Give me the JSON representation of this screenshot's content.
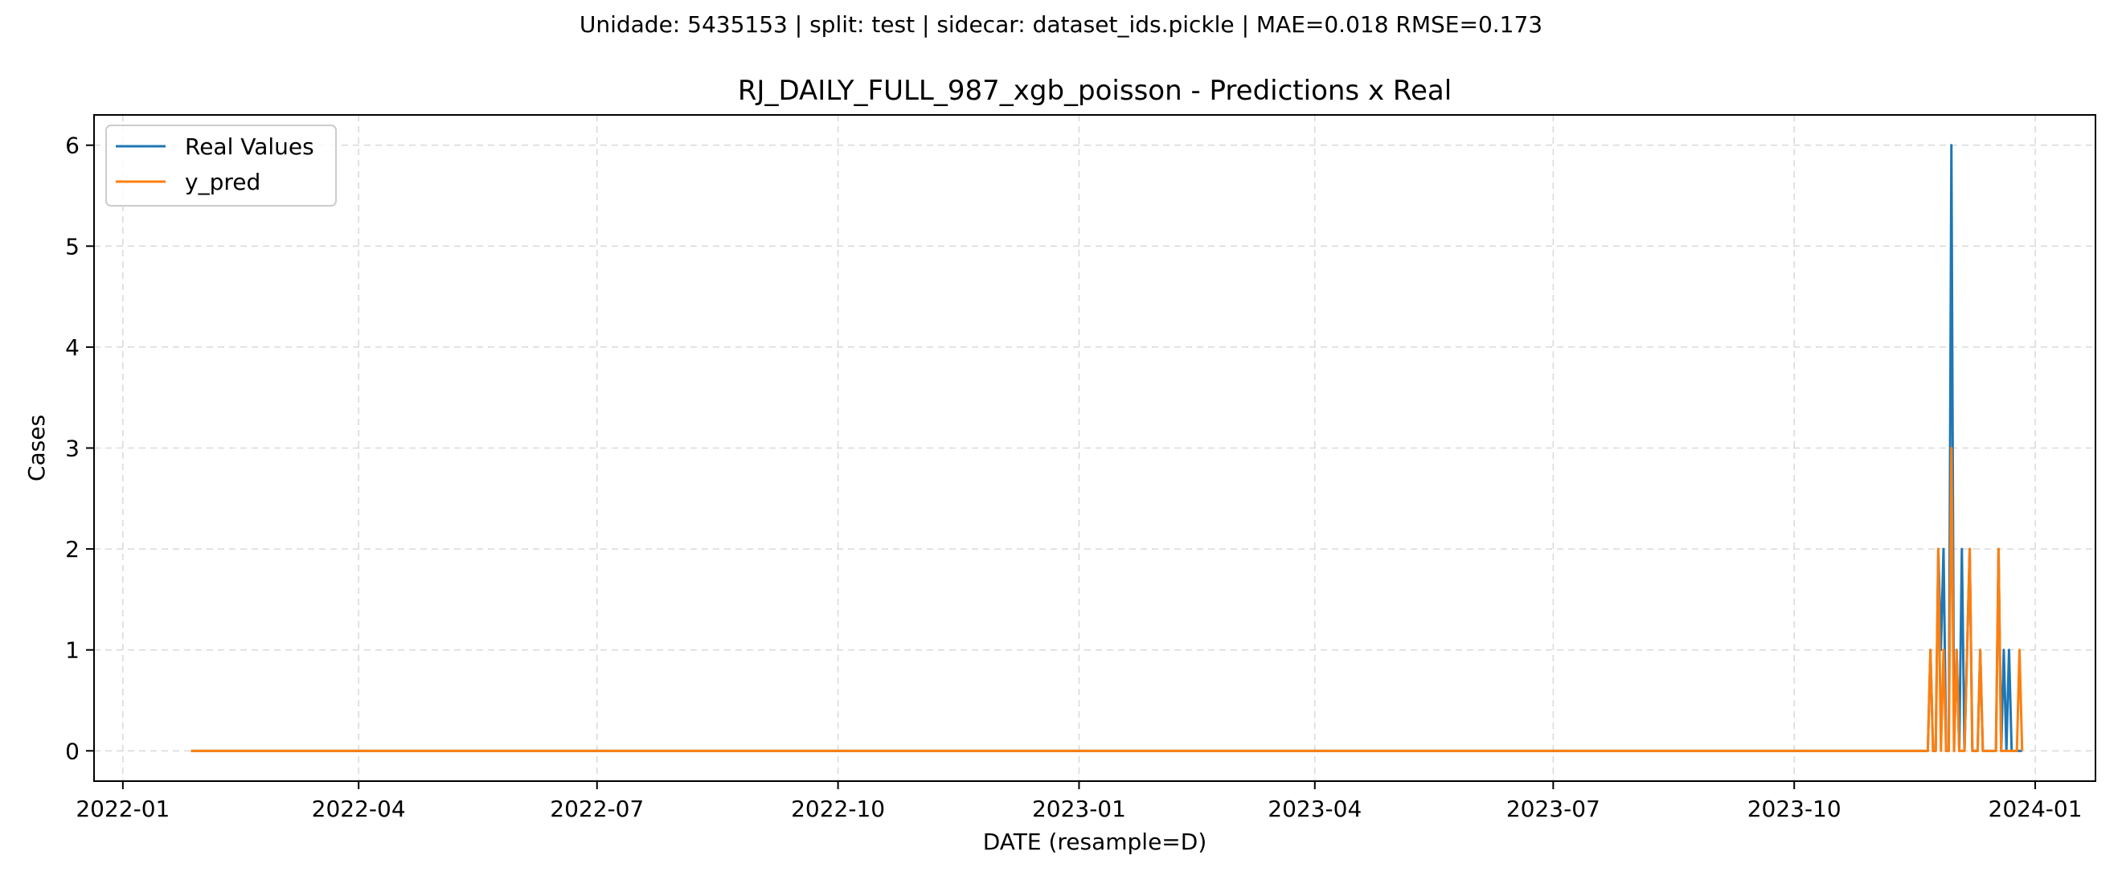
{
  "figure": {
    "suptitle": "Unidade: 5435153 | split: test | sidecar: dataset_ids.pickle | MAE=0.018  RMSE=0.173"
  },
  "chart_data": {
    "type": "line",
    "title": "RJ_DAILY_FULL_987_xgb_poisson - Predictions x Real",
    "xlabel": "DATE (resample=D)",
    "ylabel": "Cases",
    "x_ticks": [
      "2022-01",
      "2022-04",
      "2022-07",
      "2022-10",
      "2023-01",
      "2023-04",
      "2023-07",
      "2023-10",
      "2024-01"
    ],
    "y_ticks": [
      "0",
      "1",
      "2",
      "3",
      "4",
      "5",
      "6"
    ],
    "xlim": [
      "2021-12-21",
      "2024-01-24"
    ],
    "ylim": [
      -0.3,
      6.3
    ],
    "grid": true,
    "legend_position": "upper left",
    "series": [
      {
        "name": "Real Values",
        "color": "#1f77b4",
        "points": [
          [
            "2022-01-27",
            0
          ],
          [
            "2023-11-21",
            0
          ],
          [
            "2023-11-22",
            1
          ],
          [
            "2023-11-23",
            0
          ],
          [
            "2023-11-24",
            0
          ],
          [
            "2023-11-25",
            2
          ],
          [
            "2023-11-26",
            1
          ],
          [
            "2023-11-27",
            2
          ],
          [
            "2023-11-28",
            0
          ],
          [
            "2023-11-29",
            0
          ],
          [
            "2023-11-30",
            6
          ],
          [
            "2023-12-01",
            0
          ],
          [
            "2023-12-02",
            1
          ],
          [
            "2023-12-03",
            0
          ],
          [
            "2023-12-04",
            2
          ],
          [
            "2023-12-05",
            0
          ],
          [
            "2023-12-06",
            1
          ],
          [
            "2023-12-07",
            2
          ],
          [
            "2023-12-08",
            0
          ],
          [
            "2023-12-09",
            0
          ],
          [
            "2023-12-10",
            0
          ],
          [
            "2023-12-11",
            1
          ],
          [
            "2023-12-12",
            0
          ],
          [
            "2023-12-13",
            0
          ],
          [
            "2023-12-14",
            0
          ],
          [
            "2023-12-15",
            0
          ],
          [
            "2023-12-16",
            0
          ],
          [
            "2023-12-17",
            0
          ],
          [
            "2023-12-18",
            2
          ],
          [
            "2023-12-19",
            0
          ],
          [
            "2023-12-20",
            1
          ],
          [
            "2023-12-21",
            0
          ],
          [
            "2023-12-22",
            1
          ],
          [
            "2023-12-23",
            0
          ],
          [
            "2023-12-24",
            0
          ],
          [
            "2023-12-25",
            0
          ],
          [
            "2023-12-26",
            0
          ],
          [
            "2023-12-27",
            0
          ]
        ]
      },
      {
        "name": "y_pred",
        "color": "#ff7f0e",
        "points": [
          [
            "2022-01-27",
            0
          ],
          [
            "2023-11-21",
            0
          ],
          [
            "2023-11-22",
            1
          ],
          [
            "2023-11-23",
            0
          ],
          [
            "2023-11-24",
            0
          ],
          [
            "2023-11-25",
            2
          ],
          [
            "2023-11-26",
            0
          ],
          [
            "2023-11-27",
            1
          ],
          [
            "2023-11-28",
            0
          ],
          [
            "2023-11-29",
            0
          ],
          [
            "2023-11-30",
            3
          ],
          [
            "2023-12-01",
            0
          ],
          [
            "2023-12-02",
            1
          ],
          [
            "2023-12-03",
            0
          ],
          [
            "2023-12-04",
            0
          ],
          [
            "2023-12-05",
            0
          ],
          [
            "2023-12-06",
            1
          ],
          [
            "2023-12-07",
            2
          ],
          [
            "2023-12-08",
            0
          ],
          [
            "2023-12-09",
            0
          ],
          [
            "2023-12-10",
            0
          ],
          [
            "2023-12-11",
            1
          ],
          [
            "2023-12-12",
            0
          ],
          [
            "2023-12-13",
            0
          ],
          [
            "2023-12-14",
            0
          ],
          [
            "2023-12-15",
            0
          ],
          [
            "2023-12-16",
            0
          ],
          [
            "2023-12-17",
            0
          ],
          [
            "2023-12-18",
            2
          ],
          [
            "2023-12-19",
            0
          ],
          [
            "2023-12-20",
            0
          ],
          [
            "2023-12-21",
            0
          ],
          [
            "2023-12-22",
            0
          ],
          [
            "2023-12-23",
            0
          ],
          [
            "2023-12-24",
            0
          ],
          [
            "2023-12-25",
            0
          ],
          [
            "2023-12-26",
            1
          ],
          [
            "2023-12-27",
            0
          ]
        ]
      }
    ]
  }
}
